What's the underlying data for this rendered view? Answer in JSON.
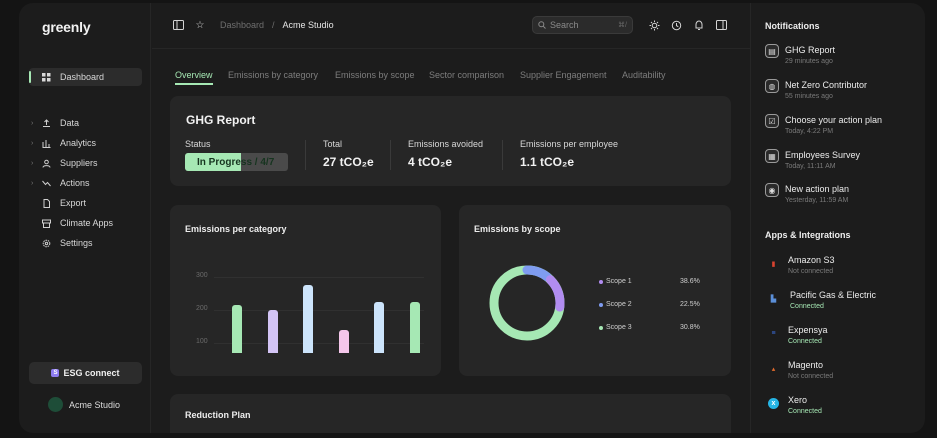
{
  "app": {
    "logo": "greenly"
  },
  "sidebar": {
    "items": [
      {
        "label": "Dashboard",
        "icon": "grid-icon",
        "active": true
      },
      {
        "label": "Data",
        "icon": "upload-icon"
      },
      {
        "label": "Analytics",
        "icon": "chart-icon"
      },
      {
        "label": "Suppliers",
        "icon": "suppliers-icon"
      },
      {
        "label": "Actions",
        "icon": "trend-icon"
      },
      {
        "label": "Export",
        "icon": "document-icon"
      },
      {
        "label": "Climate Apps",
        "icon": "store-icon"
      },
      {
        "label": "Settings",
        "icon": "gear-icon"
      }
    ],
    "esg_button": {
      "badge": "S",
      "label": "ESG connect"
    },
    "org_name": "Acme Studio"
  },
  "topbar": {
    "breadcrumb": [
      "Dashboard",
      "/",
      "Acme Studio"
    ],
    "search_placeholder": "Search",
    "search_shortcut": "⌘/"
  },
  "tabs": [
    "Overview",
    "Emissions by category",
    "Emissions by scope",
    "Sector comparison",
    "Supplier Engagement",
    "Auditability"
  ],
  "ghg": {
    "title": "GHG Report",
    "status_label": "Status",
    "status_value": "In Progress / 4/7",
    "progress_fraction": 0.54,
    "total_label": "Total",
    "total_value": "27 tCO₂e",
    "avoided_label": "Emissions avoided",
    "avoided_value": "4 tCO₂e",
    "per_employee_label": "Emissions per employee",
    "per_employee_value": "1.1 tCO₂e"
  },
  "emissions_per_category": {
    "title": "Emissions per category",
    "chart_data": {
      "type": "bar",
      "values": [
        215,
        200,
        275,
        140,
        225,
        225
      ],
      "colors": [
        "#a6e8b4",
        "#d3c4f5",
        "#cce4fb",
        "#f4c6ea",
        "#cce4fb",
        "#a6e8b4"
      ],
      "yticks": [
        "300",
        "200",
        "100"
      ],
      "ylim": [
        70,
        330
      ]
    }
  },
  "emissions_by_scope": {
    "title": "Emissions by scope",
    "chart_data": {
      "type": "pie",
      "series": [
        {
          "name": "Scope 1",
          "value": "38.6%",
          "color": "#b18cf0"
        },
        {
          "name": "Scope 2",
          "value": "22.5%",
          "color": "#7f9cf0"
        },
        {
          "name": "Scope 3",
          "value": "30.8%",
          "color": "#a6e8b4"
        }
      ]
    }
  },
  "reduction_plan": {
    "title": "Reduction Plan"
  },
  "notifications": {
    "title": "Notifications",
    "items": [
      {
        "title": "GHG Report",
        "time": "29 minutes ago",
        "icon": "report-icon"
      },
      {
        "title": "Net Zero Contributor",
        "time": "55 minutes ago",
        "icon": "globe-icon"
      },
      {
        "title": "Choose your action plan",
        "time": "Today, 4:22 PM",
        "icon": "checklist-icon"
      },
      {
        "title": "Employees Survey",
        "time": "Today, 11:11 AM",
        "icon": "survey-icon"
      },
      {
        "title": "New action plan",
        "time": "Yesterday, 11:59 AM",
        "icon": "broadcast-icon"
      }
    ]
  },
  "apps": {
    "title": "Apps & Integrations",
    "items": [
      {
        "name": "Amazon S3",
        "status": "Not connected",
        "icon": "amazon-s3-icon",
        "color": "#d9432f",
        "connected": false
      },
      {
        "name": "Pacific Gas & Electric",
        "status": "Connected",
        "icon": "pge-icon",
        "color": "#5b8fd8",
        "connected": true
      },
      {
        "name": "Expensya",
        "status": "Connected",
        "icon": "expensya-icon",
        "color": "#3d6fe0",
        "connected": true
      },
      {
        "name": "Magento",
        "status": "Not connected",
        "icon": "magento-icon",
        "color": "#e06a2c",
        "connected": false
      },
      {
        "name": "Xero",
        "status": "Connected",
        "icon": "xero-icon",
        "color": "#26b5e5",
        "connected": true
      }
    ],
    "connected_color": "#a6e8b4",
    "not_connected_color": "#7a7a7a"
  }
}
